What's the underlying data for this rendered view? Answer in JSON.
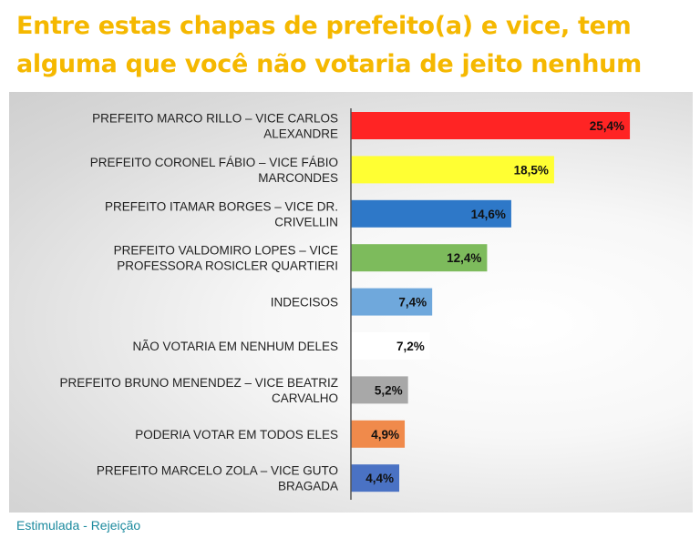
{
  "title": "Entre estas chapas de prefeito(a) e vice, tem alguma que você não votaria de jeito nenhum",
  "footer": "Estimulada - Rejeição",
  "chart_data": {
    "type": "bar",
    "orientation": "horizontal",
    "categories": [
      [
        "PREFEITO MARCO RILLO – VICE CARLOS",
        "ALEXANDRE"
      ],
      [
        "PREFEITO CORONEL FÁBIO – VICE FÁBIO",
        "MARCONDES"
      ],
      [
        "PREFEITO ITAMAR BORGES – VICE DR.",
        "CRIVELLIN"
      ],
      [
        "PREFEITO VALDOMIRO LOPES – VICE",
        "PROFESSORA ROSICLER QUARTIERI"
      ],
      [
        "INDECISOS"
      ],
      [
        "NÃO VOTARIA EM NENHUM DELES"
      ],
      [
        "PREFEITO BRUNO MENENDEZ – VICE BEATRIZ",
        "CARVALHO"
      ],
      [
        "PODERIA VOTAR EM TODOS ELES"
      ],
      [
        "PREFEITO MARCELO ZOLA – VICE GUTO",
        "BRAGADA"
      ]
    ],
    "values": [
      25.4,
      18.5,
      14.6,
      12.4,
      7.4,
      7.2,
      5.2,
      4.9,
      4.4
    ],
    "value_labels": [
      "25,4%",
      "18,5%",
      "14,6%",
      "12,4%",
      "7,4%",
      "7,2%",
      "5,2%",
      "4,9%",
      "4,4%"
    ],
    "colors": [
      "#ff2424",
      "#ffff33",
      "#2e78c8",
      "#7dbb5c",
      "#6fa8dc",
      "#ffffff",
      "#a8a8a8",
      "#f08a4b",
      "#4a72c4"
    ],
    "grid": false,
    "legend": "none"
  }
}
